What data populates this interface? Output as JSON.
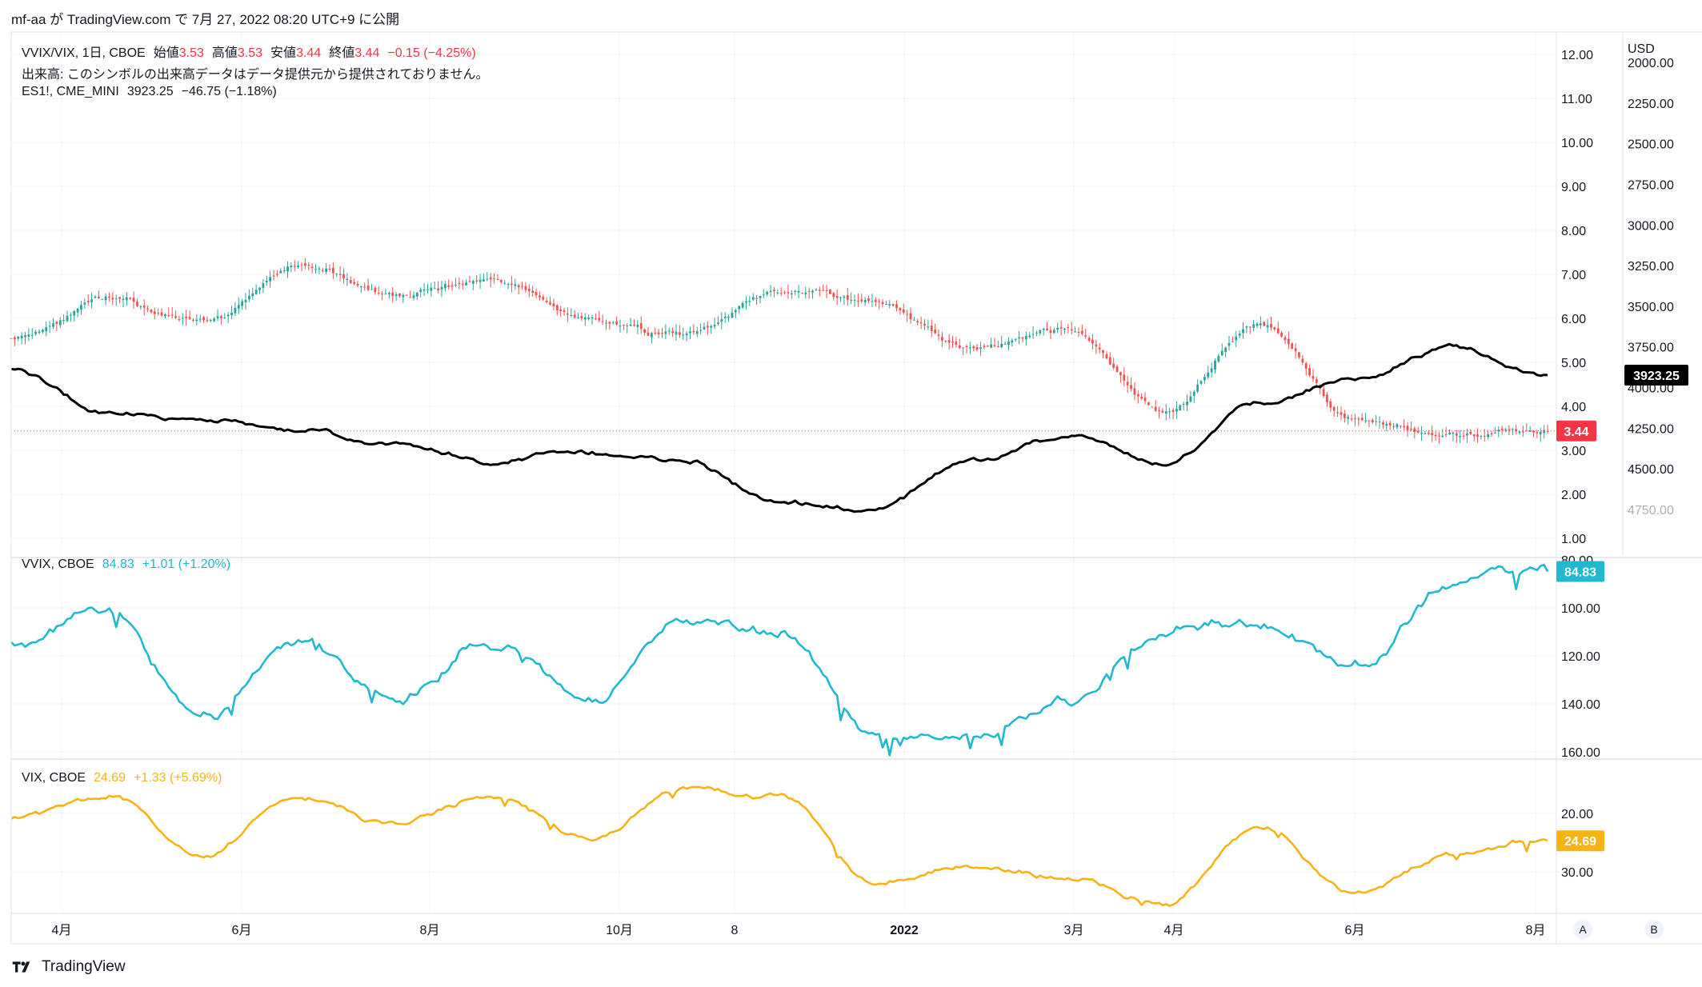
{
  "header": {
    "text": "mf-aa が TradingView.com で 7月 27, 2022 08:20 UTC+9 に公開"
  },
  "legend": {
    "main": {
      "symbol": "VVIX/VIX, 1日, CBOE",
      "open_label": "始値",
      "open": "3.53",
      "high_label": "高値",
      "high": "3.53",
      "low_label": "安値",
      "low": "3.44",
      "close_label": "終値",
      "close": "3.44",
      "change": "−0.15 (−4.25%)"
    },
    "volume_note": "出来高: このシンボルの出来高データはデータ提供元から提供されておりません。",
    "es": {
      "symbol": "ES1!, CME_MINI",
      "value": "3923.25",
      "change": "−46.75 (−1.18%)"
    },
    "vvix": {
      "symbol": "VVIX, CBOE",
      "value": "84.83",
      "change": "+1.01 (+1.20%)"
    },
    "vix": {
      "symbol": "VIX, CBOE",
      "value": "24.69",
      "change": "+1.33 (+5.69%)"
    }
  },
  "axes": {
    "currency": "USD",
    "ratio_ticks": [
      "12.00",
      "11.00",
      "10.00",
      "9.00",
      "8.00",
      "7.00",
      "6.00",
      "5.00",
      "4.00",
      "3.00",
      "2.00",
      "1.00"
    ],
    "es_ticks": [
      "4750.00",
      "4500.00",
      "4250.00",
      "4000.00",
      "3750.00",
      "3500.00",
      "3250.00",
      "3000.00",
      "2750.00",
      "2500.00",
      "2250.00",
      "2000.00"
    ],
    "vvix_ticks": [
      "160.00",
      "140.00",
      "120.00",
      "100.00",
      "80.00"
    ],
    "vix_ticks": [
      "30.00",
      "20.00"
    ],
    "time_labels": [
      "4月",
      "6月",
      "8月",
      "10月",
      "8",
      "2022",
      "3月",
      "4月",
      "6月",
      "8月"
    ],
    "price_badges": {
      "es": "3923.25",
      "ratio": "3.44",
      "vvix": "84.83",
      "vix": "24.69"
    },
    "scale_buttons": [
      "A",
      "B"
    ]
  },
  "colors": {
    "es": "#000000",
    "up": "#26a69a",
    "down": "#ef5350",
    "vvix": "#22b8cf",
    "vix": "#f5b316",
    "ratio_badge": "#f23645",
    "es_badge": "#000000"
  },
  "brand": {
    "name": "TradingView"
  },
  "chart_data": [
    {
      "type": "candlestick",
      "title": "VVIX/VIX, 1日, CBOE",
      "ylim": [
        1,
        12
      ],
      "x_range": [
        "2021-03-01",
        "2022-07-26"
      ],
      "last": {
        "open": 3.53,
        "high": 3.53,
        "low": 3.44,
        "close": 3.44
      },
      "approx_series": [
        {
          "date": "2021-03",
          "value": 5.6
        },
        {
          "date": "2021-04",
          "value": 6.4
        },
        {
          "date": "2021-05",
          "value": 5.9
        },
        {
          "date": "2021-06",
          "value": 7.2
        },
        {
          "date": "2021-07",
          "value": 6.5
        },
        {
          "date": "2021-08",
          "value": 6.9
        },
        {
          "date": "2021-09",
          "value": 6.0
        },
        {
          "date": "2021-10",
          "value": 5.6
        },
        {
          "date": "2021-11",
          "value": 6.6
        },
        {
          "date": "2021-12",
          "value": 6.4
        },
        {
          "date": "2022-01",
          "value": 5.3
        },
        {
          "date": "2022-02",
          "value": 5.7
        },
        {
          "date": "2022-03",
          "value": 3.9
        },
        {
          "date": "2022-04",
          "value": 5.9
        },
        {
          "date": "2022-05",
          "value": 3.7
        },
        {
          "date": "2022-06",
          "value": 3.3
        },
        {
          "date": "2022-07",
          "value": 3.44
        }
      ]
    },
    {
      "type": "line",
      "title": "ES1!, CME_MINI",
      "ylim": [
        1750,
        4800
      ],
      "last": 3923.25,
      "approx_series": [
        {
          "date": "2021-03",
          "value": 3900
        },
        {
          "date": "2021-04",
          "value": 4150
        },
        {
          "date": "2021-05",
          "value": 4200
        },
        {
          "date": "2021-06",
          "value": 4250
        },
        {
          "date": "2021-07",
          "value": 4350
        },
        {
          "date": "2021-08",
          "value": 4450
        },
        {
          "date": "2021-09",
          "value": 4400
        },
        {
          "date": "2021-10",
          "value": 4450
        },
        {
          "date": "2021-11",
          "value": 4700
        },
        {
          "date": "2021-12",
          "value": 4750
        },
        {
          "date": "2022-01",
          "value": 4450
        },
        {
          "date": "2022-02",
          "value": 4300
        },
        {
          "date": "2022-03",
          "value": 4450
        },
        {
          "date": "2022-04",
          "value": 4100
        },
        {
          "date": "2022-05",
          "value": 3950
        },
        {
          "date": "2022-06",
          "value": 3750
        },
        {
          "date": "2022-07",
          "value": 3923.25
        }
      ]
    },
    {
      "type": "line",
      "title": "VVIX, CBOE",
      "ylim": [
        80,
        160
      ],
      "last": 84.83,
      "approx_series": [
        {
          "date": "2021-03",
          "value": 115
        },
        {
          "date": "2021-04",
          "value": 100
        },
        {
          "date": "2021-05",
          "value": 145
        },
        {
          "date": "2021-06",
          "value": 115
        },
        {
          "date": "2021-07",
          "value": 138
        },
        {
          "date": "2021-08",
          "value": 115
        },
        {
          "date": "2021-09",
          "value": 138
        },
        {
          "date": "2021-10",
          "value": 105
        },
        {
          "date": "2021-11",
          "value": 110
        },
        {
          "date": "2021-12",
          "value": 155
        },
        {
          "date": "2022-01",
          "value": 154
        },
        {
          "date": "2022-02",
          "value": 138
        },
        {
          "date": "2022-03",
          "value": 110
        },
        {
          "date": "2022-04",
          "value": 105
        },
        {
          "date": "2022-05",
          "value": 125
        },
        {
          "date": "2022-06",
          "value": 90
        },
        {
          "date": "2022-07",
          "value": 84.83
        }
      ]
    },
    {
      "type": "line",
      "title": "VIX, CBOE",
      "ylim": [
        10,
        40
      ],
      "last": 24.69,
      "approx_series": [
        {
          "date": "2021-03",
          "value": 21
        },
        {
          "date": "2021-04",
          "value": 17
        },
        {
          "date": "2021-05",
          "value": 27
        },
        {
          "date": "2021-06",
          "value": 17
        },
        {
          "date": "2021-07",
          "value": 22
        },
        {
          "date": "2021-08",
          "value": 17
        },
        {
          "date": "2021-09",
          "value": 24
        },
        {
          "date": "2021-10",
          "value": 16
        },
        {
          "date": "2021-11",
          "value": 17
        },
        {
          "date": "2021-12",
          "value": 32
        },
        {
          "date": "2022-01",
          "value": 29
        },
        {
          "date": "2022-02",
          "value": 31
        },
        {
          "date": "2022-03",
          "value": 36
        },
        {
          "date": "2022-04",
          "value": 22
        },
        {
          "date": "2022-05",
          "value": 34
        },
        {
          "date": "2022-06",
          "value": 27
        },
        {
          "date": "2022-07",
          "value": 24.69
        }
      ]
    }
  ]
}
